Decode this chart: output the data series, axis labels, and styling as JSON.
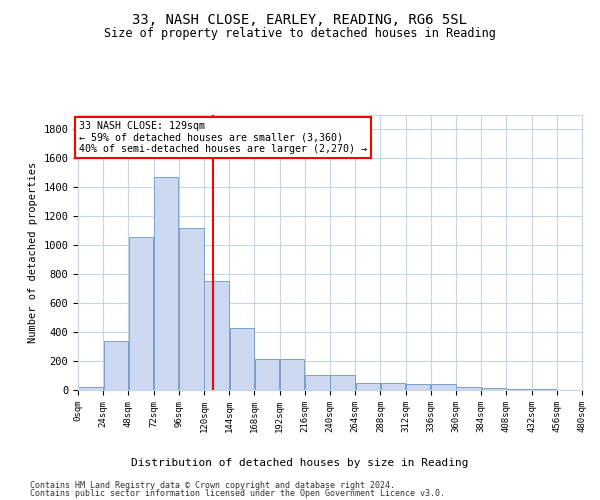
{
  "title1": "33, NASH CLOSE, EARLEY, READING, RG6 5SL",
  "title2": "Size of property relative to detached houses in Reading",
  "xlabel": "Distribution of detached houses by size in Reading",
  "ylabel": "Number of detached properties",
  "bar_color": "#ccd9f0",
  "bar_edge_color": "#7aa0cc",
  "background_color": "#ffffff",
  "grid_color": "#c8d4e8",
  "property_line_x": 129,
  "annotation_title": "33 NASH CLOSE: 129sqm",
  "annotation_line1": "← 59% of detached houses are smaller (3,360)",
  "annotation_line2": "40% of semi-detached houses are larger (2,270) →",
  "footnote1": "Contains HM Land Registry data © Crown copyright and database right 2024.",
  "footnote2": "Contains public sector information licensed under the Open Government Licence v3.0.",
  "bins": [
    0,
    24,
    48,
    72,
    96,
    120,
    144,
    168,
    192,
    216,
    240,
    264,
    288,
    312,
    336,
    360,
    384,
    408,
    432,
    456,
    480
  ],
  "bin_labels": [
    "0sqm",
    "24sqm",
    "48sqm",
    "72sqm",
    "96sqm",
    "120sqm",
    "144sqm",
    "168sqm",
    "192sqm",
    "216sqm",
    "240sqm",
    "264sqm",
    "288sqm",
    "312sqm",
    "336sqm",
    "360sqm",
    "384sqm",
    "408sqm",
    "432sqm",
    "456sqm",
    "480sqm"
  ],
  "counts": [
    20,
    340,
    1060,
    1470,
    1120,
    750,
    430,
    215,
    215,
    105,
    105,
    50,
    50,
    40,
    40,
    20,
    15,
    10,
    5,
    2,
    1
  ],
  "ylim": [
    0,
    1900
  ],
  "yticks": [
    0,
    200,
    400,
    600,
    800,
    1000,
    1200,
    1400,
    1600,
    1800
  ]
}
